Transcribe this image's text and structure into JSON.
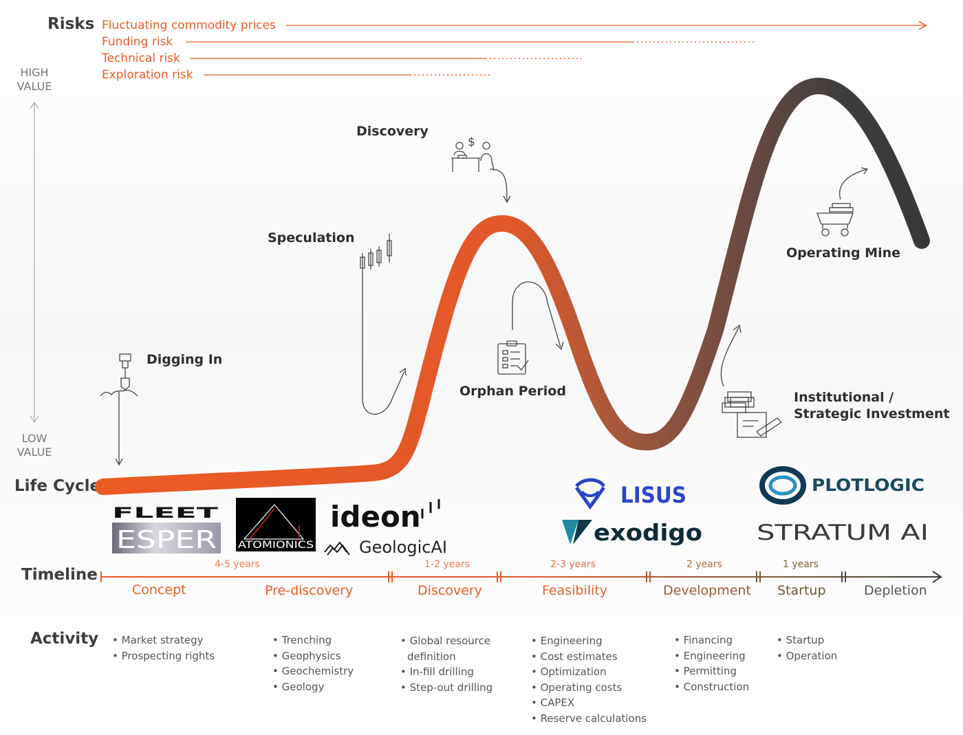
{
  "section_labels": {
    "risks": "Risks",
    "life_cycle": "Life Cycle",
    "timeline": "Timeline",
    "activity": "Activity"
  },
  "value_axis": {
    "high": "HIGH VALUE",
    "low": "LOW VALUE"
  },
  "risks": [
    "Fluctuating commodity prices",
    "Funding risk",
    "Technical risk",
    "Exploration risk"
  ],
  "stages": {
    "digging_in": "Digging In",
    "speculation": "Speculation",
    "discovery": "Discovery",
    "orphan_period": "Orphan Period",
    "operating_mine": "Operating Mine",
    "investment": "Institutional / Strategic Investment"
  },
  "logos": {
    "fleet": "FLEET",
    "esper": "ESPER",
    "atomionics": "ATOMIONICS",
    "ideon": "ideon",
    "geologicai": "GeologicAI",
    "lisus": "LISUS",
    "exodigo": "exodigo",
    "plotlogic": "PLOTLOGIC",
    "stratum": "STRATUM AI"
  },
  "timeline": {
    "durations": [
      "4-5 years",
      "1-2 years",
      "2-3 years",
      "2 years",
      "1 years"
    ],
    "phases": [
      "Concept",
      "Pre-discovery",
      "Discovery",
      "Feasibility",
      "Development",
      "Startup",
      "Depletion"
    ]
  },
  "activities": [
    [
      "Market strategy",
      "Prospecting rights"
    ],
    [
      "Trenching",
      "Geophysics",
      "Geochemistry",
      "Geology"
    ],
    [
      "Global resource definition",
      "In-fill drilling",
      "Step-out drilling"
    ],
    [
      "Engineering",
      "Cost estimates",
      "Optimization",
      "Operating costs",
      "CAPEX",
      "Reserve calculations"
    ],
    [
      "Financing",
      "Engineering",
      "Permitting",
      "Construction"
    ],
    [
      "Startup",
      "Operation"
    ]
  ],
  "colors": {
    "accent_orange": "#ec5a24",
    "dark_gray": "#3a3a3a",
    "brown": "#8b5a3c",
    "lisus_blue": "#2a45c8",
    "plotlogic_teal": "#1a4a5e"
  }
}
